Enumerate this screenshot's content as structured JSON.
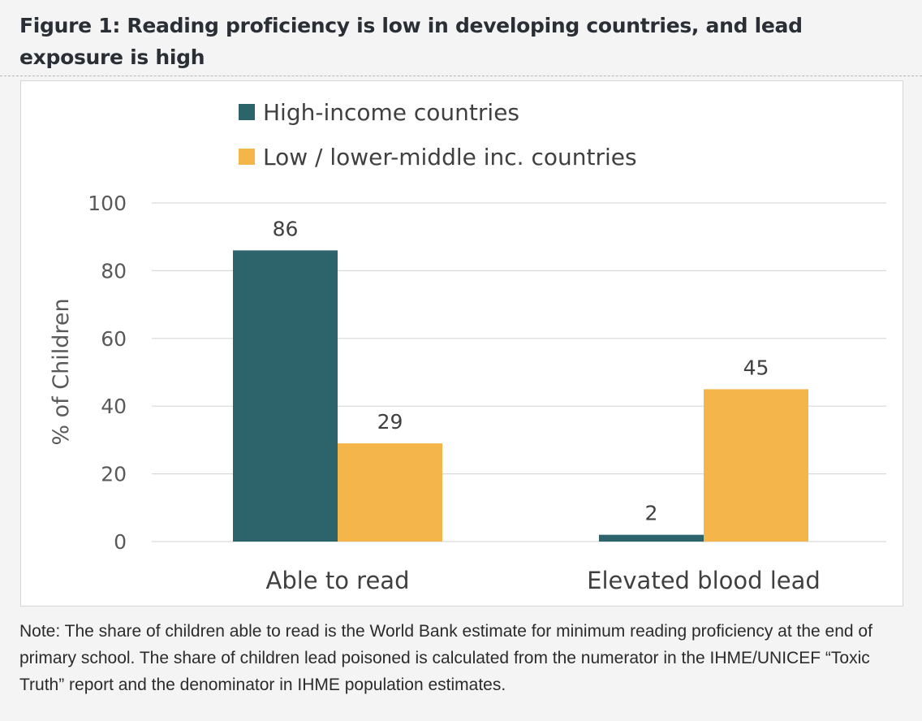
{
  "figure": {
    "title": "Figure 1: Reading proficiency is low in developing countries, and lead exposure is high",
    "note": "Note: The share of children able to read is the World Bank estimate for minimum reading proficiency at the end of primary school. The share of children lead poisoned is calculated from the numerator in the IHME/UNICEF “Toxic Truth” report and the denominator in IHME population estimates."
  },
  "chart_data": {
    "type": "bar",
    "title": "",
    "xlabel": "",
    "ylabel": "% of Children",
    "ylim": [
      0,
      100
    ],
    "yticks": [
      0,
      20,
      40,
      60,
      80,
      100
    ],
    "categories": [
      "Able to read",
      "Elevated blood lead"
    ],
    "series": [
      {
        "name": "High-income countries",
        "values": [
          86,
          2
        ],
        "color": "#2d646b"
      },
      {
        "name": "Low / lower-middle inc. countries",
        "values": [
          29,
          45
        ],
        "color": "#f4b64b"
      }
    ],
    "grid": true,
    "legend_position": "top-left",
    "data_labels": true
  }
}
